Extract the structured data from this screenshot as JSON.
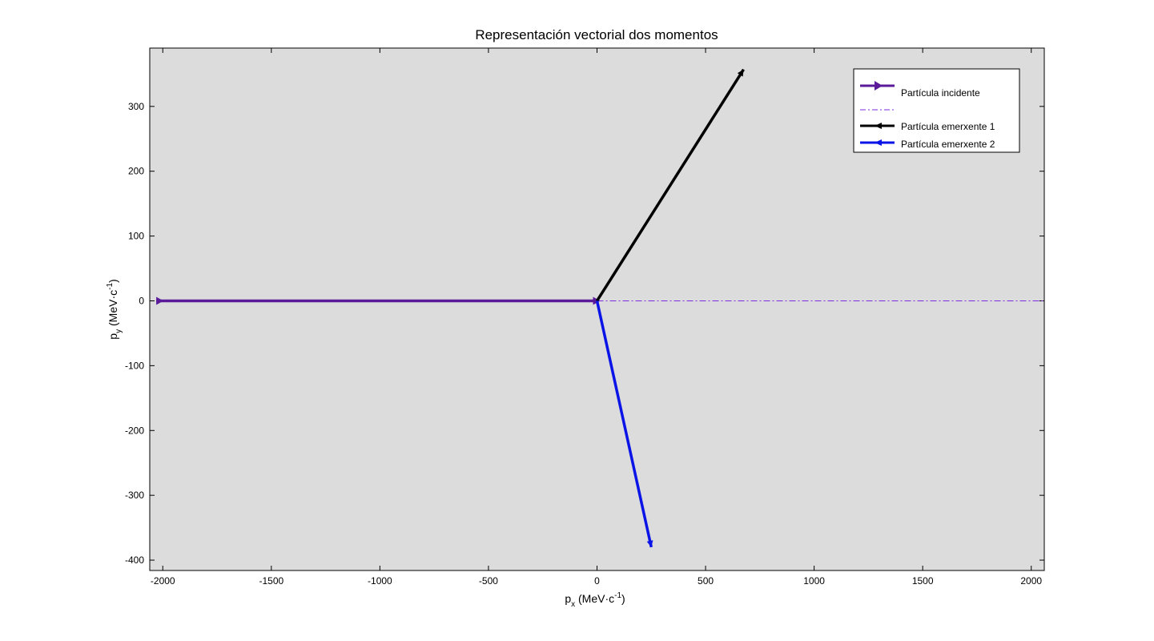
{
  "chart_data": {
    "type": "line",
    "title": "Representación vectorial dos momentos",
    "xlabel": {
      "base": "p",
      "sub": "x",
      "unit_pre": " (MeV·c",
      "sup": "-1",
      "unit_post": ")"
    },
    "ylabel": {
      "base": "p",
      "sub": "y",
      "unit_pre": " (MeV·c",
      "sup": "-1",
      "unit_post": ")"
    },
    "xlim": [
      -2060,
      2060
    ],
    "ylim": [
      -416,
      390
    ],
    "xticks": [
      -2000,
      -1500,
      -1000,
      -500,
      0,
      500,
      1000,
      1500,
      2000
    ],
    "yticks": [
      -400,
      -300,
      -200,
      -100,
      0,
      100,
      200,
      300
    ],
    "grid": false,
    "legend_position": "top-right",
    "series": [
      {
        "name": "Partícula incidente",
        "x": [
          -2030,
          0
        ],
        "y": [
          0,
          0
        ],
        "color": "#5a1a9a",
        "style": "solid-arrow"
      },
      {
        "name": "",
        "x": [
          0,
          2060
        ],
        "y": [
          0,
          0
        ],
        "color": "#7b2ce0",
        "style": "dash-dot"
      },
      {
        "name": "Partícula emerxente 1",
        "x": [
          0,
          675
        ],
        "y": [
          0,
          357
        ],
        "color": "#000000",
        "style": "solid-arrow"
      },
      {
        "name": "Partícula emerxente 2",
        "x": [
          0,
          250
        ],
        "y": [
          0,
          -380
        ],
        "color": "#0a14e6",
        "style": "solid-arrow"
      }
    ],
    "colors": {
      "plot_background": "#dcdcdc",
      "figure_background": "#ffffff"
    }
  }
}
